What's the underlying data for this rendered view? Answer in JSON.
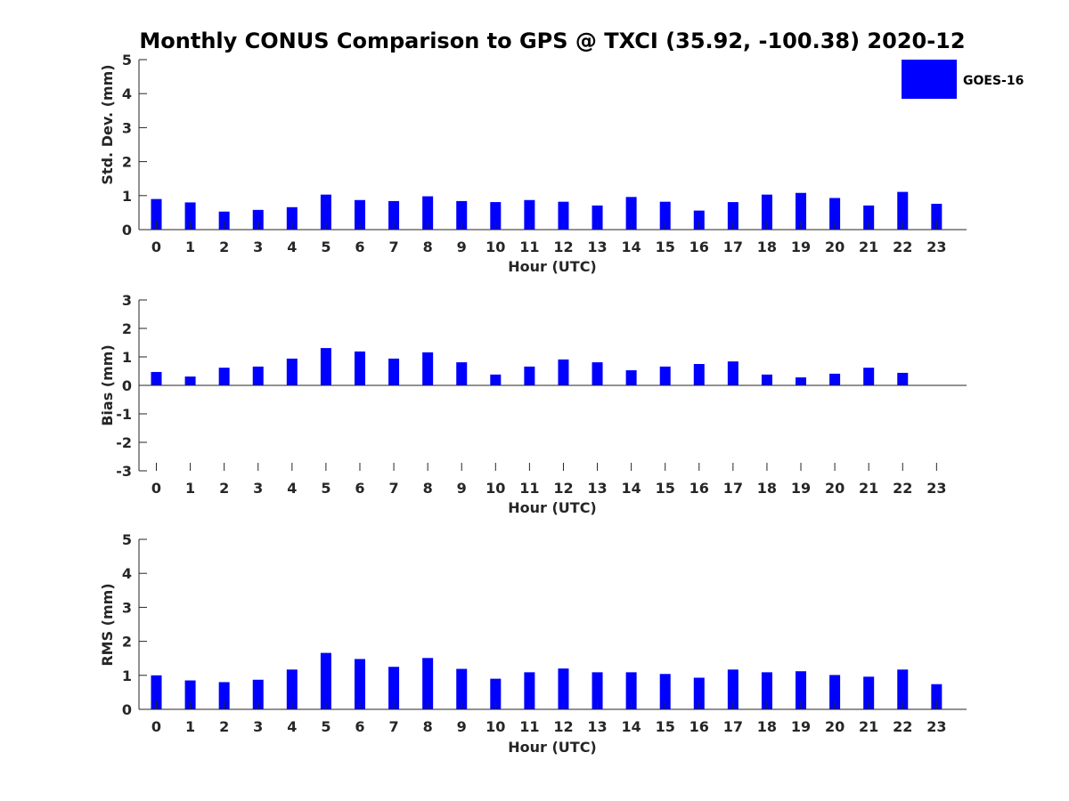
{
  "title": "Monthly CONUS Comparison to GPS @ TXCI (35.92, -100.38) 2020-12",
  "legend": {
    "label": "GOES-16",
    "color": "#0000ff"
  },
  "chart_data": [
    {
      "type": "bar",
      "categories": [
        "0",
        "1",
        "2",
        "3",
        "4",
        "5",
        "6",
        "7",
        "8",
        "9",
        "10",
        "11",
        "12",
        "13",
        "14",
        "15",
        "16",
        "17",
        "18",
        "19",
        "20",
        "21",
        "22",
        "23"
      ],
      "series": [
        {
          "name": "GOES-16",
          "values": [
            0.9,
            0.8,
            0.53,
            0.58,
            0.66,
            1.03,
            0.87,
            0.84,
            0.98,
            0.84,
            0.81,
            0.87,
            0.82,
            0.71,
            0.96,
            0.82,
            0.56,
            0.81,
            1.03,
            1.08,
            0.93,
            0.71,
            1.11,
            0.76
          ]
        }
      ],
      "xlabel": "Hour (UTC)",
      "ylabel": "Std. Dev. (mm)",
      "ylim": [
        0,
        5
      ],
      "yticks": [
        "0",
        "1",
        "2",
        "3",
        "4",
        "5"
      ],
      "grid": false,
      "legend_position": "top-right"
    },
    {
      "type": "bar",
      "categories": [
        "0",
        "1",
        "2",
        "3",
        "4",
        "5",
        "6",
        "7",
        "8",
        "9",
        "10",
        "11",
        "12",
        "13",
        "14",
        "15",
        "16",
        "17",
        "18",
        "19",
        "20",
        "21",
        "22",
        "23"
      ],
      "series": [
        {
          "name": "GOES-16",
          "values": [
            0.47,
            0.31,
            0.62,
            0.66,
            0.94,
            1.31,
            1.19,
            0.94,
            1.16,
            0.81,
            0.38,
            0.66,
            0.91,
            0.81,
            0.53,
            0.66,
            0.75,
            0.84,
            0.38,
            0.28,
            0.41,
            0.62,
            0.44,
            0.0
          ]
        }
      ],
      "xlabel": "Hour (UTC)",
      "ylabel": "Bias (mm)",
      "ylim": [
        -3,
        3
      ],
      "yticks": [
        "-3",
        "-2",
        "-1",
        "0",
        "1",
        "2",
        "3"
      ],
      "grid": false
    },
    {
      "type": "bar",
      "categories": [
        "0",
        "1",
        "2",
        "3",
        "4",
        "5",
        "6",
        "7",
        "8",
        "9",
        "10",
        "11",
        "12",
        "13",
        "14",
        "15",
        "16",
        "17",
        "18",
        "19",
        "20",
        "21",
        "22",
        "23"
      ],
      "series": [
        {
          "name": "GOES-16",
          "values": [
            1.0,
            0.85,
            0.8,
            0.87,
            1.17,
            1.66,
            1.48,
            1.25,
            1.51,
            1.19,
            0.9,
            1.09,
            1.2,
            1.09,
            1.09,
            1.04,
            0.93,
            1.17,
            1.09,
            1.12,
            1.01,
            0.96,
            1.17,
            0.74
          ]
        }
      ],
      "xlabel": "Hour (UTC)",
      "ylabel": "RMS (mm)",
      "ylim": [
        0,
        5
      ],
      "yticks": [
        "0",
        "1",
        "2",
        "3",
        "4",
        "5"
      ],
      "grid": false
    }
  ]
}
